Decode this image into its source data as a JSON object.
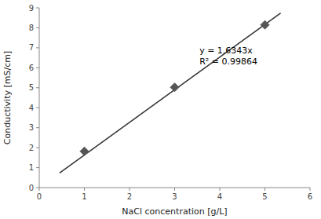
{
  "chart_data": {
    "type": "scatter",
    "xlabel": "NaCl concentration [g/L]",
    "ylabel": "Conductivity [mS/cm]",
    "xlim": [
      0,
      6
    ],
    "ylim": [
      0,
      9
    ],
    "xticks": [
      0,
      1,
      2,
      3,
      4,
      5,
      6
    ],
    "yticks": [
      0,
      1,
      2,
      3,
      4,
      5,
      6,
      7,
      8,
      9
    ],
    "grid": false,
    "series": [
      {
        "type": "scatter",
        "marker": "diamond",
        "color": "#555555",
        "x": [
          1,
          3,
          5
        ],
        "values": [
          1.82,
          5.02,
          8.15
        ]
      },
      {
        "type": "line",
        "line_style": "solid",
        "color": "#333333",
        "x": [
          0.45,
          5.35
        ],
        "values": [
          0.735435,
          8.743505
        ]
      }
    ],
    "annotations": [
      {
        "text": "y = 1.6343x\nR² = 0.99864",
        "x": 3.55,
        "y": 7.1
      }
    ]
  }
}
